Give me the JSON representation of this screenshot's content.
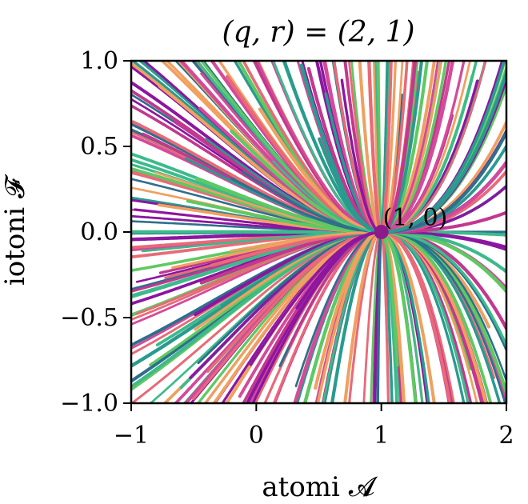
{
  "chart_data": {
    "type": "streamplot",
    "title": "(q, r) = (2, 1)",
    "xlabel": "atomi 𝓐",
    "ylabel": "iotoni 𝓕",
    "xlim": [
      -1,
      2
    ],
    "ylim": [
      -1,
      1
    ],
    "x_ticks": [
      -1,
      0,
      1,
      2
    ],
    "x_tick_labels": [
      "−1",
      "0",
      "1",
      "2"
    ],
    "y_ticks": [
      -1,
      -0.5,
      0,
      0.5,
      1
    ],
    "y_tick_labels": [
      "−1.0",
      "−0.5",
      "0.0",
      "0.5",
      "1.0"
    ],
    "grid": false,
    "fixed_point": {
      "x": 1,
      "y": 0,
      "label": "(1, 0)",
      "color": "#8b1a8b"
    },
    "palette": [
      "#8b16a0",
      "#c2388f",
      "#e86a78",
      "#f0a060",
      "#3dba8c",
      "#2a9a8e",
      "#2e6f8c",
      "#5ec962",
      "#d44a9a"
    ]
  }
}
